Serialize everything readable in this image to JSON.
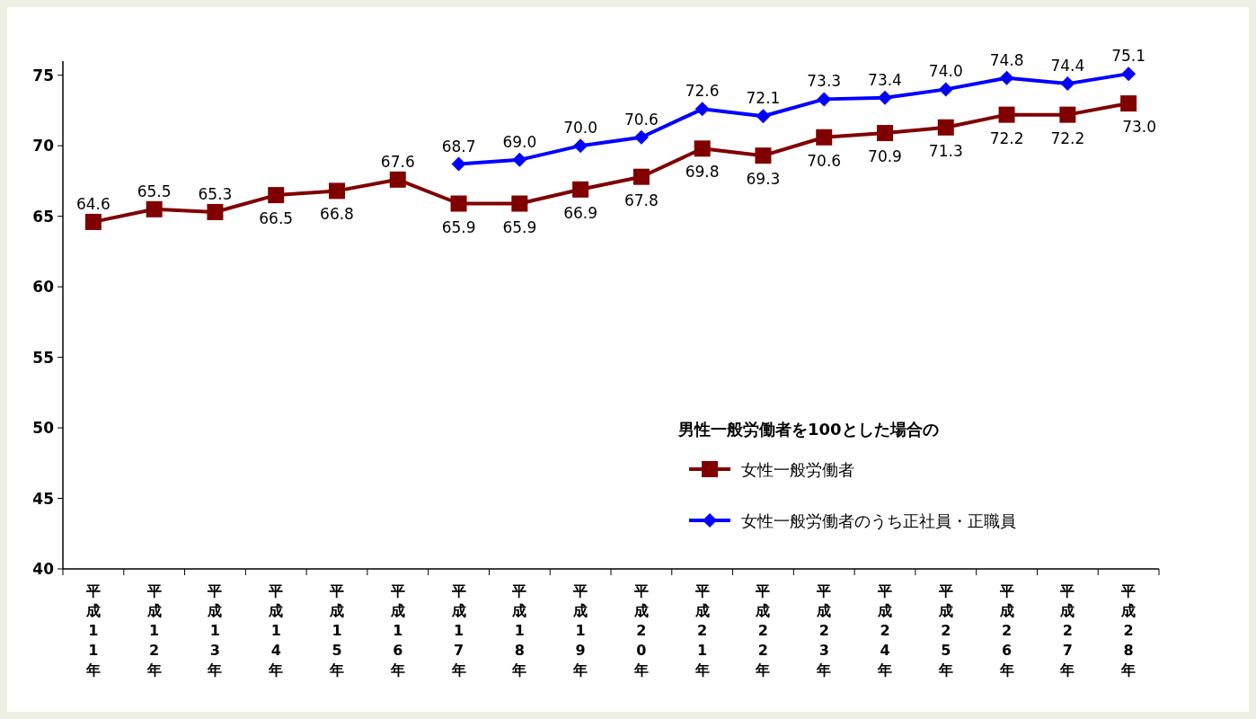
{
  "chart_data": {
    "type": "line",
    "categories": [
      "平成11年",
      "平成12年",
      "平成13年",
      "平成14年",
      "平成15年",
      "平成16年",
      "平成17年",
      "平成18年",
      "平成19年",
      "平成20年",
      "平成21年",
      "平成22年",
      "平成23年",
      "平成24年",
      "平成25年",
      "平成26年",
      "平成27年",
      "平成28年"
    ],
    "series": [
      {
        "name": "女性一般労働者",
        "color": "#800000",
        "marker": "square",
        "values": [
          64.6,
          65.5,
          65.3,
          66.5,
          66.8,
          67.6,
          65.9,
          65.9,
          66.9,
          67.8,
          69.8,
          69.3,
          70.6,
          70.9,
          71.3,
          72.2,
          72.2,
          73.0
        ],
        "value_labels": [
          "64.6",
          "65.5",
          "65.3",
          "66.5",
          "66.8",
          "67.6",
          "65.9",
          "65.9",
          "66.9",
          "67.8",
          "69.8",
          "69.3",
          "70.6",
          "70.9",
          "71.3",
          "72.2",
          "72.2",
          "73.0"
        ]
      },
      {
        "name": "女性一般労働者のうち正社員・正職員",
        "color": "#0000ff",
        "marker": "diamond",
        "values": [
          null,
          null,
          null,
          null,
          null,
          null,
          68.7,
          69.0,
          70.0,
          70.6,
          72.6,
          72.1,
          73.3,
          73.4,
          74.0,
          74.8,
          74.4,
          75.1
        ],
        "value_labels": [
          null,
          null,
          null,
          null,
          null,
          null,
          "68.7",
          "69.0",
          "70.0",
          "70.6",
          "72.6",
          "72.1",
          "73.3",
          "73.4",
          "74.0",
          "74.8",
          "74.4",
          "75.1"
        ]
      }
    ],
    "legend_title": "男性一般労働者を100とした場合の",
    "legend": "bottom right",
    "ylim": [
      40,
      76
    ],
    "yticks": [
      40,
      45,
      50,
      55,
      60,
      65,
      70,
      75
    ],
    "grid": false,
    "line_style": "solid"
  }
}
